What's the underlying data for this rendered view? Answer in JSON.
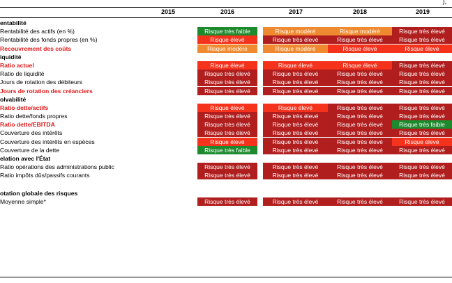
{
  "top_fragment": "),",
  "years": [
    "2015",
    "2016",
    "2017",
    "2018",
    "2019"
  ],
  "colors": {
    "Risque très faible": "#1e8a2e",
    "Risque modéré": "#f08a30",
    "Risque élevé": "#f5321c",
    "Risque très élevé": "#b01e1e"
  },
  "rows": [
    {
      "label": "entabilité",
      "style": "section",
      "values": []
    },
    {
      "label": "Rentabilité des actifs (en %)",
      "style": "sub",
      "values": [
        "",
        "Risque très faible",
        "Risque modéré",
        "Risque modéré",
        "Risque très élevé"
      ]
    },
    {
      "label": "Rentabilité des fonds propres (en %)",
      "style": "sub",
      "values": [
        "",
        "Risque élevé",
        "Risque très élevé",
        "Risque très élevé",
        "Risque très élevé"
      ]
    },
    {
      "label": "Recouvrement des coûts",
      "style": "red",
      "values": [
        "",
        "Risque modéré",
        "Risque modéré",
        "Risque élevé",
        "Risque élevé"
      ]
    },
    {
      "label": "iquidité",
      "style": "section",
      "values": []
    },
    {
      "label": "Ratio actuel",
      "style": "red",
      "values": [
        "",
        "Risque élevé",
        "Risque élevé",
        "Risque élevé",
        "Risque très élevé"
      ]
    },
    {
      "label": "Ratio de liquidité",
      "style": "sub",
      "values": [
        "",
        "Risque très élevé",
        "Risque très élevé",
        "Risque très élevé",
        "Risque très élevé"
      ]
    },
    {
      "label": "Jours de rotation des débiteurs",
      "style": "sub",
      "values": [
        "",
        "Risque très élevé",
        "Risque très élevé",
        "Risque très élevé",
        "Risque très élevé"
      ]
    },
    {
      "label": "Jours de rotation des créanciers",
      "style": "red",
      "values": [
        "",
        "Risque très élevé",
        "Risque très élevé",
        "Risque très élevé",
        "Risque très élevé"
      ]
    },
    {
      "label": "olvabilité",
      "style": "section",
      "values": []
    },
    {
      "label": "Ratio dette/actifs",
      "style": "red",
      "values": [
        "",
        "Risque élevé",
        "Risque élevé",
        "Risque très élevé",
        "Risque très élevé"
      ]
    },
    {
      "label": "Ratio dette/fonds propres",
      "style": "sub",
      "values": [
        "",
        "Risque très élevé",
        "Risque très élevé",
        "Risque très élevé",
        "Risque très élevé"
      ]
    },
    {
      "label": "Ratio dette/EBITDA",
      "style": "red",
      "values": [
        "",
        "Risque très élevé",
        "Risque très élevé",
        "Risque très élevé",
        "Risque très faible"
      ]
    },
    {
      "label": "Couverture des intérêts",
      "style": "sub",
      "values": [
        "",
        "Risque très élevé",
        "Risque très élevé",
        "Risque très élevé",
        "Risque très élevé"
      ]
    },
    {
      "label": "Couverture des intérêts en espèces",
      "style": "sub",
      "values": [
        "",
        "Risque élevé",
        "Risque très élevé",
        "Risque très élevé",
        "Risque élevé"
      ]
    },
    {
      "label": "Couverture de la dette",
      "style": "sub",
      "values": [
        "",
        "Risque très faible",
        "Risque très élevé",
        "Risque très élevé",
        "Risque très élevé"
      ]
    },
    {
      "label": "elation avec l'État",
      "style": "section",
      "values": []
    },
    {
      "label": "Ratio opérations des administrations public",
      "style": "sub",
      "values": [
        "",
        "Risque très élevé",
        "Risque très élevé",
        "Risque très élevé",
        "Risque très élevé"
      ]
    },
    {
      "label": "Ratio impôts dûs/passifs courants",
      "style": "sub",
      "values": [
        "",
        "Risque très élevé",
        "Risque très élevé",
        "Risque très élevé",
        "Risque très élevé"
      ]
    },
    {
      "label": "",
      "style": "gap",
      "values": []
    },
    {
      "label": "otation globale des risques",
      "style": "section",
      "values": []
    },
    {
      "label": "Moyenne simple*",
      "style": "sub",
      "values": [
        "",
        "Risque très élevé",
        "Risque très élevé",
        "Risque très élevé",
        "Risque très élevé"
      ]
    }
  ]
}
